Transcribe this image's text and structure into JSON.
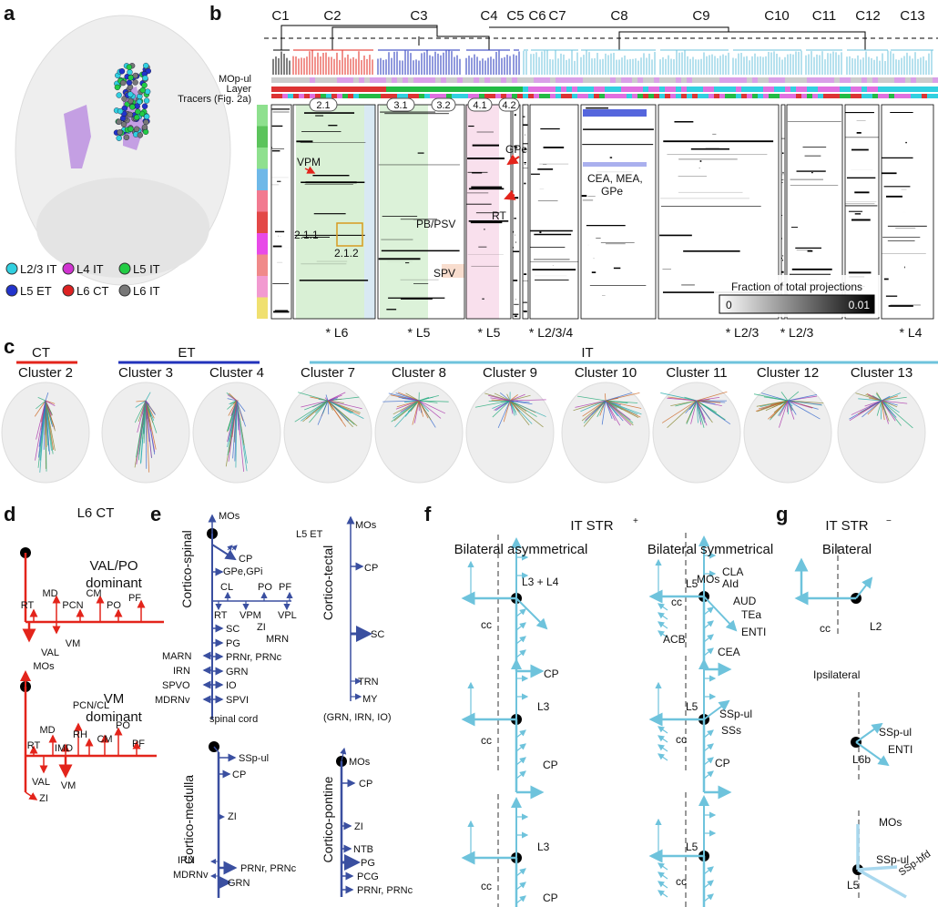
{
  "panel_labels": [
    "a",
    "b",
    "c",
    "d",
    "e",
    "f",
    "g"
  ],
  "a": {
    "legend": [
      "L2/3 IT",
      "L4 IT",
      "L5 IT",
      "L5 ET",
      "L6 CT",
      "L6 IT"
    ]
  },
  "b": {
    "clusters": [
      "C1",
      "C2",
      "C3",
      "C4",
      "C5",
      "C6",
      "C7",
      "C8",
      "C9",
      "C10",
      "C11",
      "C12",
      "C13"
    ],
    "row_labels": [
      "MOp-ul",
      "Layer",
      "Tracers (Fig. 2a)"
    ],
    "subclusters": [
      "2.1",
      "3.1",
      "3.2",
      "4.1",
      "4.2"
    ],
    "annotations": [
      "VPM",
      "GPe",
      "RT",
      "2.1.1",
      "2.1.2",
      "PB/PSV",
      "SPV",
      "CEA, MEA,",
      "GPe"
    ],
    "colorbar": {
      "title": "Fraction of total projections",
      "ticks": [
        0,
        0.01
      ]
    },
    "layers": [
      "* L6",
      "* L5",
      "* L5",
      "* L2/3/4",
      "* L2/3",
      "* L2/3",
      "* L4"
    ]
  },
  "c": {
    "groups": [
      "CT",
      "ET",
      "IT"
    ],
    "clusters": [
      "Cluster 2",
      "Cluster 3",
      "Cluster 4",
      "Cluster 7",
      "Cluster 8",
      "Cluster 9",
      "Cluster 10",
      "Cluster 11",
      "Cluster 12",
      "Cluster 13"
    ]
  },
  "d": {
    "title": "L6 CT",
    "top": {
      "title": [
        "VAL/PO",
        "dominant"
      ],
      "labels": [
        "RT",
        "MD",
        "PCN",
        "CM",
        "PO",
        "PF",
        "VAL",
        "VM"
      ]
    },
    "bottom": {
      "title": [
        "VM",
        "dominant"
      ],
      "labels": [
        "MOs",
        "PCN/CL",
        "PO",
        "MD",
        "RH",
        "CM",
        "RT",
        "IMD",
        "PF",
        "VAL",
        "VM",
        "ZI"
      ]
    }
  },
  "e": {
    "title": "L5 ET",
    "spinal": {
      "name": "Cortico-spinal",
      "labels": [
        "MOs",
        "CP",
        "GPe,GPi",
        "CL",
        "PO",
        "PF",
        "RT",
        "VPM",
        "VPL",
        "ZI",
        "SC",
        "MRN",
        "PG",
        "PRNr, PRNc",
        "GRN",
        "IO",
        "SPVI",
        "MARN",
        "IRN",
        "SPVO",
        "MDRNv",
        "spinal cord"
      ]
    },
    "tectal": {
      "name": "Cortico-tectal",
      "labels": [
        "MOs",
        "CP",
        "SC",
        "TRN",
        "MY",
        "(GRN, IRN, IO)"
      ]
    },
    "medulla": {
      "name": "Cortico-medulla",
      "labels": [
        "SSp-ul",
        "CP",
        "ZI",
        "PRNr, PRNc",
        "GRN",
        "IRN",
        "MDRNv"
      ]
    },
    "pontine": {
      "name": "Cortico-pontine",
      "labels": [
        "MOs",
        "CP",
        "ZI",
        "NTB",
        "PG",
        "PCG",
        "PRNr, PRNc"
      ]
    }
  },
  "f": {
    "title": "IT STR",
    "superscript": "+",
    "columns": [
      "Bilateral asymmetrical",
      "Bilateral symmetrical"
    ],
    "left": [
      [
        "L3 + L4",
        "cc",
        "CP"
      ],
      [
        "L3",
        "cc",
        "CP"
      ],
      [
        "L3",
        "cc",
        "CP"
      ]
    ],
    "right": [
      [
        "MOs",
        "L5",
        "CLA",
        "AId",
        "AUD",
        "TEa",
        "ENTI",
        "cc",
        "ACB",
        "CEA"
      ],
      [
        "L5",
        "SSp-ul",
        "SSs",
        "cc",
        "CP"
      ],
      [
        "L5",
        "cc"
      ]
    ]
  },
  "g": {
    "title": "IT STR",
    "superscript": "−",
    "subtitle": "Bilateral",
    "rows": [
      [
        "L2",
        "cc"
      ],
      [
        "Ipsilateral",
        "SSp-ul",
        "L6b",
        "ENTI"
      ],
      [
        "MOs",
        "SSp-ul",
        "L5",
        "SSp-bfd"
      ]
    ]
  }
}
